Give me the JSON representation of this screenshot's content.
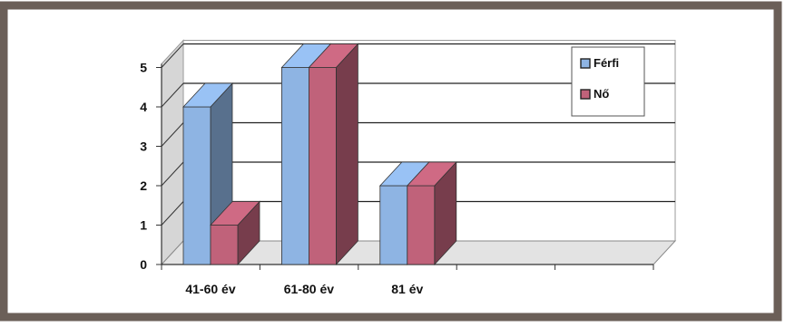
{
  "chart_data": {
    "type": "bar",
    "categories": [
      "41-60 év",
      "61-80 év",
      "81 év"
    ],
    "series": [
      {
        "name": "Férfi",
        "values": [
          4,
          5,
          2
        ],
        "color": "#8eb4e3"
      },
      {
        "name": "Nő",
        "values": [
          1,
          5,
          2
        ],
        "color": "#c0627a"
      }
    ],
    "title": "",
    "xlabel": "",
    "ylabel": "",
    "ylim": [
      0,
      5
    ],
    "yticks": [
      "0",
      "1",
      "2",
      "3",
      "4",
      "5"
    ],
    "grid": true,
    "legend_position": "top-right",
    "style": "3d-clustered-column"
  }
}
